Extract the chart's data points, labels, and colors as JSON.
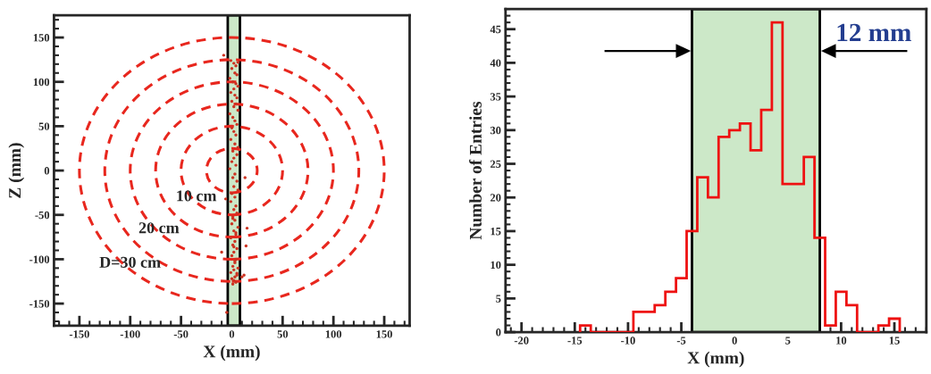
{
  "chart_data": [
    {
      "type": "scatter",
      "xlabel": "X (mm)",
      "ylabel": "Z (mm)",
      "xlim": [
        -175,
        175
      ],
      "ylim": [
        -175,
        175
      ],
      "xticks": [
        -150,
        -100,
        -50,
        0,
        50,
        100,
        150
      ],
      "yticks": [
        -150,
        -100,
        -50,
        0,
        50,
        100,
        150
      ],
      "bands": [
        {
          "axis": "x",
          "from": -4,
          "to": 8,
          "color": "#cce8c8"
        }
      ],
      "annotations": [
        "10 cm",
        "20 cm",
        "D=30 cm"
      ],
      "series": [
        {
          "type": "scatter",
          "color": "#cc3322",
          "marker": "circle",
          "x": [
            -1,
            2,
            4,
            6,
            0,
            3,
            5,
            -2,
            1,
            4,
            6,
            2,
            -1,
            3,
            5,
            0,
            4,
            2,
            6,
            -2,
            1,
            3,
            5,
            0,
            2,
            4,
            -1,
            3,
            6,
            1,
            5,
            2,
            0,
            4,
            -2,
            3,
            1,
            5,
            2,
            6,
            0,
            3,
            -1,
            4,
            2,
            5,
            1,
            3,
            0,
            6,
            2,
            4,
            -1,
            3,
            1,
            5,
            2,
            0,
            4,
            3,
            1,
            6,
            2,
            -1,
            5,
            3,
            0,
            2,
            4,
            1,
            5,
            3,
            2,
            4,
            1,
            -8,
            -5,
            13,
            15,
            14,
            -10,
            10,
            12,
            -6
          ],
          "values": [
            124,
            121,
            118,
            122,
            115,
            110,
            108,
            104,
            100,
            98,
            95,
            92,
            88,
            85,
            82,
            78,
            75,
            72,
            68,
            64,
            60,
            56,
            52,
            48,
            44,
            40,
            35,
            30,
            26,
            22,
            18,
            14,
            10,
            6,
            2,
            -4,
            -8,
            -12,
            -18,
            -22,
            -26,
            -30,
            -35,
            -40,
            -44,
            -48,
            -52,
            -56,
            -60,
            -64,
            -68,
            -72,
            -76,
            -80,
            -84,
            -88,
            -92,
            -96,
            -100,
            -104,
            -108,
            -110,
            -112,
            -115,
            -118,
            -120,
            -122,
            -124,
            -126,
            -128,
            -116,
            -102,
            -86,
            -70,
            -54,
            130,
            -160,
            -8,
            -65,
            -85,
            -92,
            -120,
            -118,
            -32
          ]
        }
      ]
    },
    {
      "type": "histogram",
      "xlabel": "X (mm)",
      "ylabel": "Number of Entries",
      "xlim": [
        -21.5,
        18
      ],
      "ylim": [
        0,
        48
      ],
      "xticks": [
        -20,
        -15,
        -10,
        -5,
        0,
        5,
        10,
        15
      ],
      "yticks": [
        0,
        5,
        10,
        15,
        20,
        25,
        30,
        35,
        40,
        45
      ],
      "bands": [
        {
          "axis": "x",
          "from": -4,
          "to": 8,
          "color": "#cce8c8"
        }
      ],
      "annotations": [
        "12 mm"
      ],
      "bins": [
        -14.5,
        -13.5,
        -12.5,
        -11.5,
        -10.5,
        -9.5,
        -8.5,
        -7.5,
        -6.5,
        -5.5,
        -4.5,
        -3.5,
        -2.5,
        -1.5,
        -0.5,
        0.5,
        1.5,
        2.5,
        3.5,
        4.5,
        5.5,
        6.5,
        7.5,
        8.5,
        9.5,
        10.5,
        11.5,
        12.5,
        13.5,
        14.5,
        15.5
      ],
      "values": [
        1,
        0,
        0,
        0,
        0,
        3,
        3,
        4,
        6,
        8,
        15,
        23,
        20,
        29,
        30,
        31,
        27,
        33,
        46,
        22,
        22,
        26,
        14,
        1,
        6,
        4,
        0,
        0,
        1,
        2
      ],
      "color": "#ee1111"
    }
  ]
}
